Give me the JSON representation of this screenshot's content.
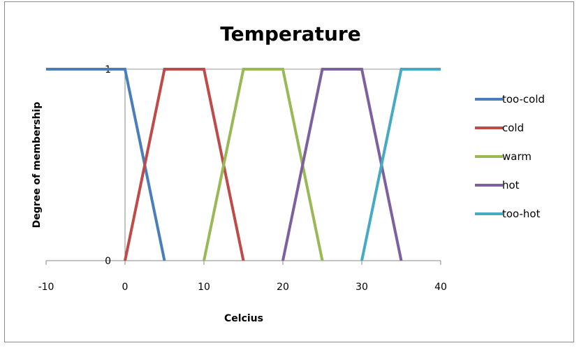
{
  "chart_data": {
    "type": "line",
    "title": "Temperature",
    "xlabel": "Celcius",
    "ylabel": "Degree of membership",
    "xlim": [
      -10,
      40
    ],
    "ylim": [
      0,
      1
    ],
    "x_ticks": [
      -10,
      0,
      10,
      20,
      30,
      40
    ],
    "y_ticks": [
      0,
      1
    ],
    "grid": false,
    "legend_position": "right",
    "series": [
      {
        "name": "too-cold",
        "color": "#4a7ebb",
        "x": [
          -10,
          0,
          5
        ],
        "y": [
          1,
          1,
          0
        ]
      },
      {
        "name": "cold",
        "color": "#be4b48",
        "x": [
          0,
          5,
          10,
          15
        ],
        "y": [
          0,
          1,
          1,
          0
        ]
      },
      {
        "name": "warm",
        "color": "#98b954",
        "x": [
          10,
          15,
          20,
          25
        ],
        "y": [
          0,
          1,
          1,
          0
        ]
      },
      {
        "name": "hot",
        "color": "#7d60a0",
        "x": [
          20,
          25,
          30,
          35
        ],
        "y": [
          0,
          1,
          1,
          0
        ]
      },
      {
        "name": "too-hot",
        "color": "#46aac5",
        "x": [
          30,
          35,
          40
        ],
        "y": [
          0,
          1,
          1
        ]
      }
    ]
  }
}
